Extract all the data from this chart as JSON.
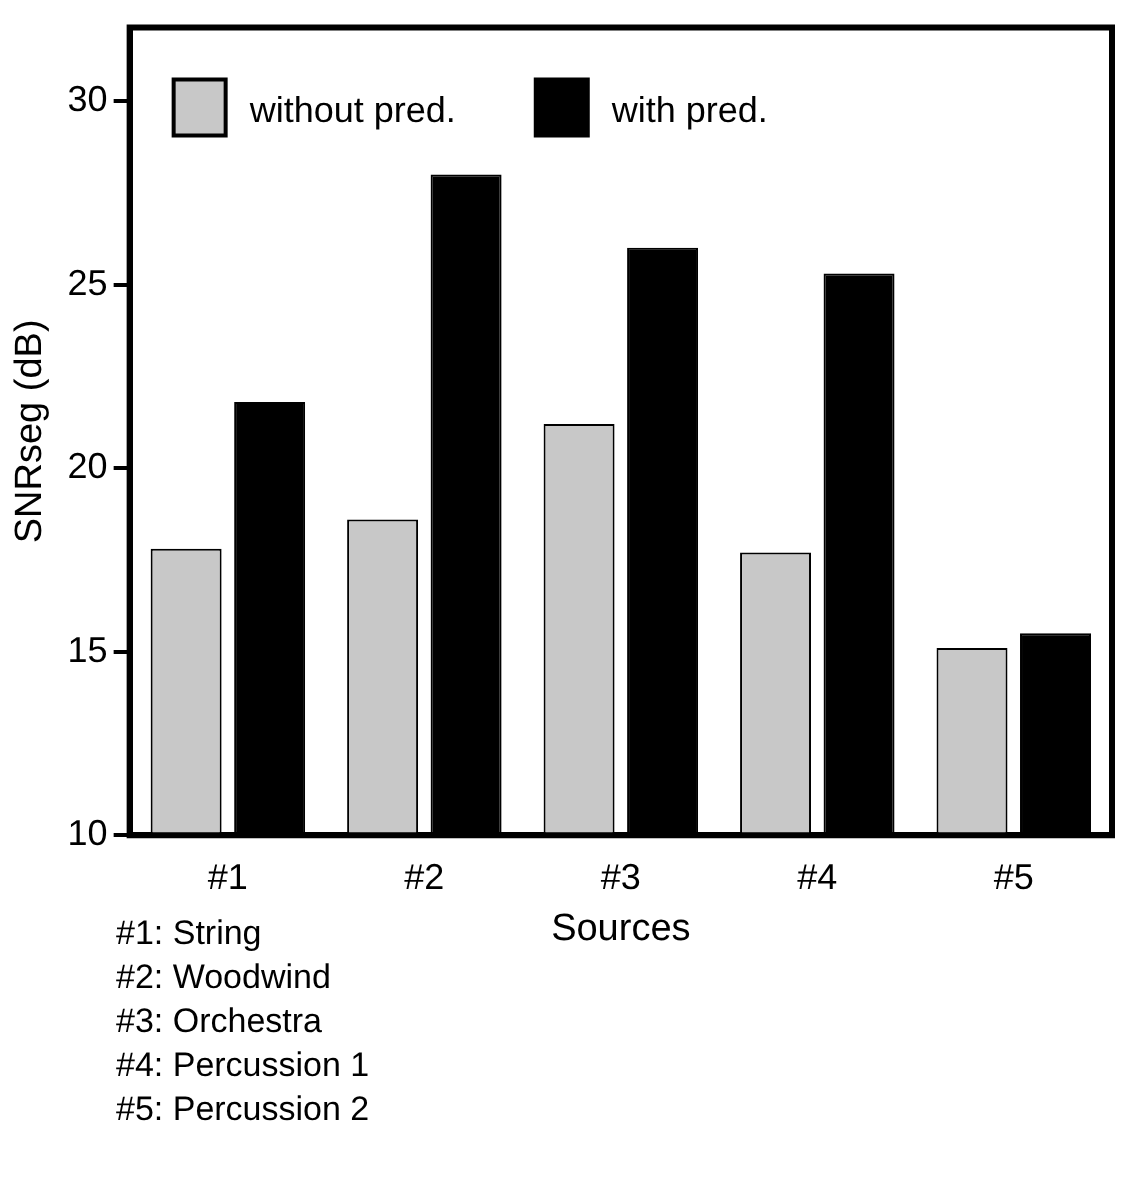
{
  "chart_data": {
    "type": "bar",
    "xlabel": "Sources",
    "ylabel": "SNRseg (dB)",
    "categories": [
      "#1",
      "#2",
      "#3",
      "#4",
      "#5"
    ],
    "series": [
      {
        "name": "without pred.",
        "color": "#c8c8c8",
        "values": [
          17.8,
          18.6,
          21.2,
          17.7,
          15.1
        ]
      },
      {
        "name": "with pred.",
        "color": "#000000",
        "values": [
          21.8,
          28.0,
          26.0,
          25.3,
          15.5
        ]
      }
    ],
    "ylim": [
      10,
      32
    ],
    "yticks": [
      10,
      15,
      20,
      25,
      30
    ],
    "grid": false,
    "legend": "top",
    "annotations": [
      "#1: String",
      "#2: Woodwind",
      "#3: Orchestra",
      "#4: Percussion 1",
      "#5: Percussion 2"
    ]
  }
}
